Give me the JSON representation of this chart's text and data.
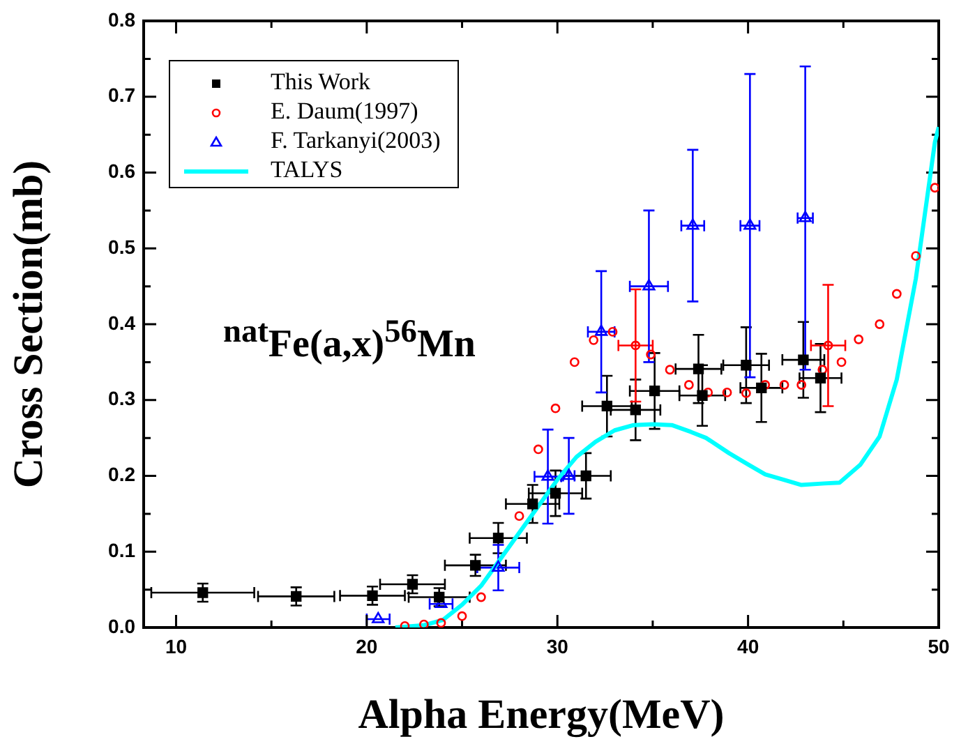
{
  "chart_data": {
    "type": "scatter",
    "xlabel": "Alpha Energy(MeV)",
    "ylabel": "Cross Section(mb)",
    "annotations": [
      "$^{nat}$Fe(a,x)$^{56}$Mn"
    ],
    "xlim": [
      8.3,
      50
    ],
    "ylim": [
      0,
      0.8
    ],
    "xticks": [
      10,
      {
        "value": 15,
        "label": null
      },
      20,
      {
        "value": 25,
        "label": null
      },
      30,
      {
        "value": 35,
        "label": null
      },
      40,
      {
        "value": 45,
        "label": null
      },
      50
    ],
    "yticks": [
      {
        "value": 0,
        "label": "0.0"
      },
      {
        "value": 0.05,
        "label": null
      },
      {
        "value": 0.1,
        "label": "0.1"
      },
      {
        "value": 0.15,
        "label": null
      },
      {
        "value": 0.2,
        "label": "0.2"
      },
      {
        "value": 0.25,
        "label": null
      },
      {
        "value": 0.3,
        "label": "0.3"
      },
      {
        "value": 0.35,
        "label": null
      },
      {
        "value": 0.4,
        "label": "0.4"
      },
      {
        "value": 0.45,
        "label": null
      },
      {
        "value": 0.5,
        "label": "0.5"
      },
      {
        "value": 0.55,
        "label": null
      },
      {
        "value": 0.6,
        "label": "0.6"
      },
      {
        "value": 0.65,
        "label": null
      },
      {
        "value": 0.7,
        "label": "0.7"
      },
      {
        "value": 0.75,
        "label": null
      },
      {
        "value": 0.8,
        "label": "0.8"
      }
    ],
    "legend": "top left",
    "series": [
      {
        "name": "This Work",
        "type": "scatter",
        "marker": "square",
        "color": "#000000",
        "x": [
          11.4,
          16.3,
          20.3,
          22.4,
          23.8,
          25.7,
          26.9,
          28.7,
          29.9,
          31.5,
          32.6,
          34.1,
          35.1,
          37.4,
          37.6,
          39.9,
          40.7,
          42.9,
          43.8
        ],
        "values": [
          0.046,
          0.041,
          0.042,
          0.057,
          0.04,
          0.082,
          0.118,
          0.163,
          0.177,
          0.2,
          0.292,
          0.287,
          0.312,
          0.341,
          0.306,
          0.346,
          0.316,
          0.353,
          0.329
        ],
        "errors": [
          0.012,
          0.012,
          0.012,
          0.012,
          0.012,
          0.014,
          0.02,
          0.025,
          0.03,
          0.03,
          0.04,
          0.04,
          0.05,
          0.045,
          0.04,
          0.05,
          0.045,
          0.05,
          0.045
        ],
        "xerrors": [
          2.7,
          2.0,
          1.7,
          1.7,
          1.6,
          1.6,
          1.5,
          1.4,
          1.4,
          1.3,
          1.3,
          1.3,
          1.3,
          1.2,
          1.2,
          1.2,
          1.1,
          1.1,
          1.1
        ]
      },
      {
        "name": "E. Daum(1997)",
        "type": "scatter",
        "marker": "circle",
        "color": "#ff0000",
        "x": [
          22.0,
          23.0,
          23.9,
          25.0,
          26.0,
          28.0,
          29.0,
          29.9,
          30.9,
          31.9,
          32.9,
          34.1,
          34.9,
          35.9,
          36.9,
          37.9,
          38.9,
          39.9,
          40.9,
          41.9,
          42.8,
          43.9,
          44.2,
          44.9,
          45.8,
          46.9,
          47.8,
          48.8,
          49.8
        ],
        "values": [
          0.002,
          0.004,
          0.006,
          0.015,
          0.04,
          0.147,
          0.235,
          0.289,
          0.35,
          0.379,
          0.39,
          0.372,
          0.36,
          0.34,
          0.32,
          0.31,
          0.31,
          0.309,
          0.32,
          0.32,
          0.32,
          0.34,
          0.372,
          0.35,
          0.38,
          0.4,
          0.44,
          0.49,
          0.58
        ],
        "errors": [
          null,
          null,
          null,
          null,
          null,
          null,
          null,
          null,
          null,
          null,
          null,
          0.074,
          null,
          null,
          null,
          null,
          null,
          null,
          null,
          null,
          null,
          null,
          0.08,
          null,
          null,
          null,
          null,
          null,
          null
        ],
        "xerrors": [
          null,
          null,
          null,
          null,
          null,
          null,
          null,
          null,
          null,
          null,
          null,
          0.9,
          null,
          null,
          null,
          null,
          null,
          null,
          null,
          null,
          null,
          null,
          0.9,
          null,
          null,
          null,
          null,
          null,
          null
        ]
      },
      {
        "name": "F. Tarkanyi(2003)",
        "type": "scatter",
        "marker": "triangle",
        "color": "#0000ff",
        "x": [
          20.6,
          23.9,
          26.9,
          29.5,
          30.6,
          32.3,
          34.8,
          37.1,
          40.1,
          43.0
        ],
        "values": [
          0.011,
          0.031,
          0.079,
          0.199,
          0.2,
          0.39,
          0.45,
          0.53,
          0.53,
          0.54
        ],
        "errors": [
          null,
          null,
          0.03,
          0.062,
          0.05,
          0.08,
          0.1,
          0.1,
          0.2,
          0.2
        ],
        "xerrors": [
          0.6,
          0.6,
          1.1,
          0.7,
          0.3,
          0.7,
          1.0,
          0.6,
          0.5,
          0.4
        ]
      },
      {
        "name": "TALYS",
        "type": "line",
        "marker": "none",
        "color": "#00ffff",
        "x": [
          21.5,
          23,
          24,
          25,
          26,
          27,
          28,
          29,
          30,
          31,
          32,
          33,
          34,
          35,
          36,
          37,
          37.8,
          39,
          40,
          40.9,
          42,
          42.8,
          44,
          44.8,
          45.9,
          46.9,
          47.8,
          48.8,
          49.8,
          50
        ],
        "values": [
          0,
          0.003,
          0.01,
          0.03,
          0.055,
          0.09,
          0.125,
          0.16,
          0.195,
          0.225,
          0.245,
          0.26,
          0.267,
          0.268,
          0.267,
          0.258,
          0.25,
          0.23,
          0.215,
          0.202,
          0.194,
          0.188,
          0.19,
          0.191,
          0.215,
          0.252,
          0.327,
          0.46,
          0.64,
          0.66
        ]
      }
    ]
  }
}
